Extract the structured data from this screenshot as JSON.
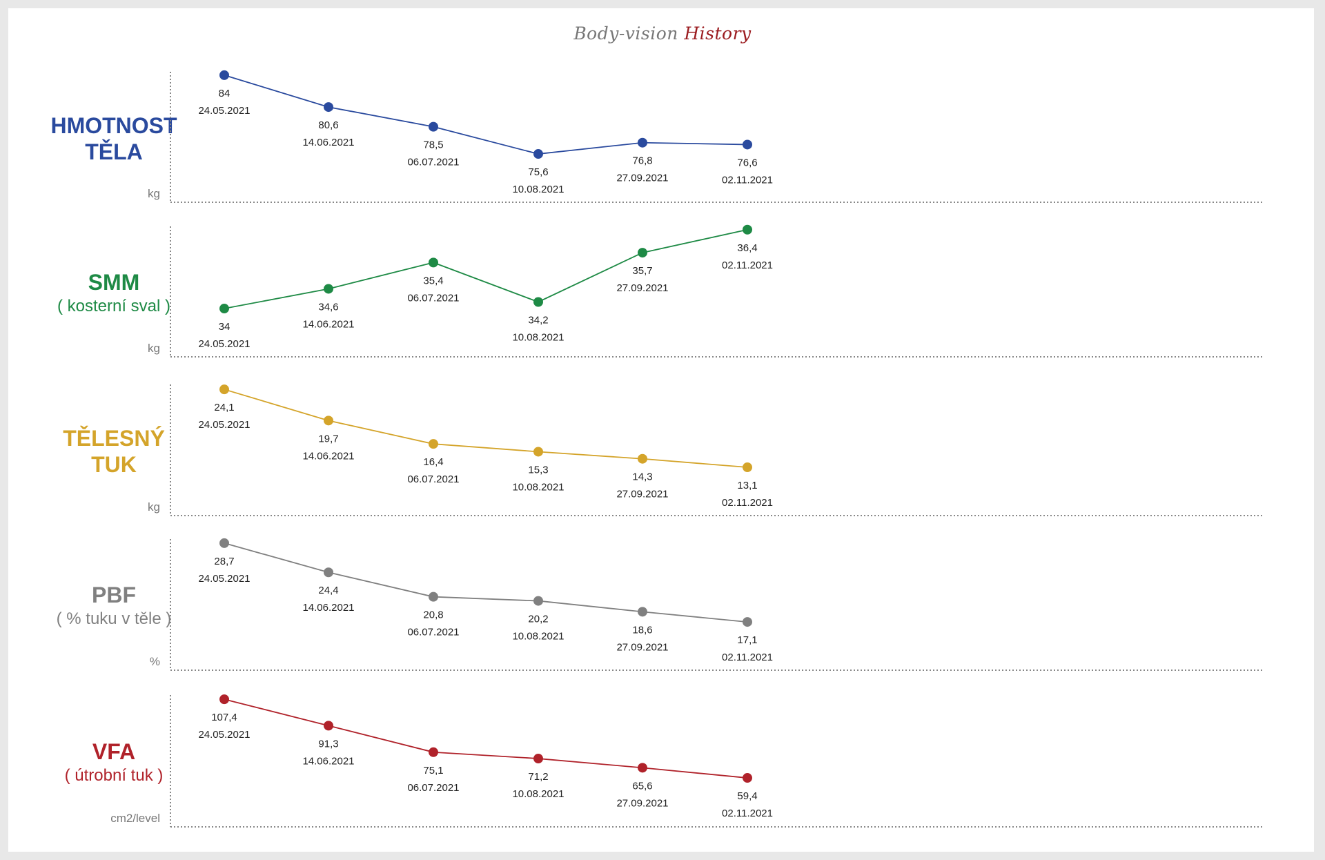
{
  "title": {
    "part1": "Body-vision",
    "part2": "History"
  },
  "chart_data": [
    {
      "type": "line",
      "name": "hmotnost",
      "title_lines": [
        "HMOTNOST",
        "TĚLA"
      ],
      "subtitle": "",
      "ylabel": "kg",
      "color": "#2a4a9e",
      "x": [
        "24.05.2021",
        "14.06.2021",
        "06.07.2021",
        "10.08.2021",
        "27.09.2021",
        "02.11.2021"
      ],
      "values": [
        84,
        80.6,
        78.5,
        75.6,
        76.8,
        76.6
      ],
      "labels": [
        "84",
        "80,6",
        "78,5",
        "75,6",
        "76,8",
        "76,6"
      ],
      "ylim": [
        70.45,
        84.36
      ]
    },
    {
      "type": "line",
      "name": "smm",
      "title_lines": [
        "SMM"
      ],
      "subtitle": "( kosterní sval )",
      "ylabel": "kg",
      "color": "#1e8a45",
      "x": [
        "24.05.2021",
        "14.06.2021",
        "06.07.2021",
        "10.08.2021",
        "27.09.2021",
        "02.11.2021"
      ],
      "values": [
        34,
        34.6,
        35.4,
        34.2,
        35.7,
        36.4
      ],
      "labels": [
        "34",
        "34,6",
        "35,4",
        "34,2",
        "35,7",
        "36,4"
      ],
      "ylim": [
        32.53,
        36.5
      ]
    },
    {
      "type": "line",
      "name": "telesny-tuk",
      "title_lines": [
        "TĚLESNÝ",
        "TUK"
      ],
      "subtitle": "",
      "ylabel": "kg",
      "color": "#d4a42a",
      "x": [
        "24.05.2021",
        "14.06.2021",
        "06.07.2021",
        "10.08.2021",
        "27.09.2021",
        "02.11.2021"
      ],
      "values": [
        24.1,
        19.7,
        16.4,
        15.3,
        14.3,
        13.1
      ],
      "labels": [
        "24,1",
        "19,7",
        "16,4",
        "15,3",
        "14,3",
        "13,1"
      ],
      "ylim": [
        6.28,
        24.8
      ]
    },
    {
      "type": "line",
      "name": "pbf",
      "title_lines": [
        "PBF"
      ],
      "subtitle": "( % tuku v těle )",
      "ylabel": "%",
      "color": "#808080",
      "x": [
        "24.05.2021",
        "14.06.2021",
        "06.07.2021",
        "10.08.2021",
        "27.09.2021",
        "02.11.2021"
      ],
      "values": [
        28.7,
        24.4,
        20.8,
        20.2,
        18.6,
        17.1
      ],
      "labels": [
        "28,7",
        "24,4",
        "20,8",
        "20,2",
        "18,6",
        "17,1"
      ],
      "ylim": [
        10,
        29.3
      ]
    },
    {
      "type": "line",
      "name": "vfa",
      "title_lines": [
        "VFA"
      ],
      "subtitle": "( útrobní tuk )",
      "ylabel": "cm2/level",
      "color": "#b0222a",
      "x": [
        "24.05.2021",
        "14.06.2021",
        "06.07.2021",
        "10.08.2021",
        "27.09.2021",
        "02.11.2021"
      ],
      "values": [
        107.4,
        91.3,
        75.1,
        71.2,
        65.6,
        59.4
      ],
      "labels": [
        "107,4",
        "91,3",
        "75,1",
        "71,2",
        "65,6",
        "59,4"
      ],
      "ylim": [
        29.5,
        110
      ]
    }
  ]
}
